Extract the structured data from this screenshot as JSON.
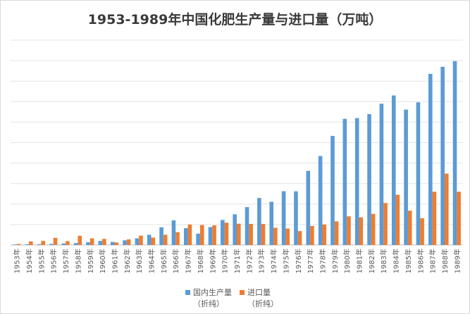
{
  "chart_data": {
    "type": "bar",
    "title": "1953-1989年中国化肥生产量与进口量（万吨）",
    "xlabel": "",
    "ylabel": "",
    "ylim": [
      0,
      2000
    ],
    "grid": true,
    "legend_position": "bottom",
    "categories": [
      "1953年",
      "1954年",
      "1955年",
      "1956年",
      "1957年",
      "1958年",
      "1959年",
      "1960年",
      "1961年",
      "1962年",
      "1963年",
      "1964年",
      "1965年",
      "1966年",
      "1967年",
      "1968年",
      "1969年",
      "1970年",
      "1971年",
      "1972年",
      "1973年",
      "1974年",
      "1975年",
      "1976年",
      "1977年",
      "1978年",
      "1979年",
      "1980年",
      "1981年",
      "1982年",
      "1983年",
      "1984年",
      "1985年",
      "1986年",
      "1987年",
      "1988年",
      "1989年"
    ],
    "series": [
      {
        "name": "国内生产量",
        "sub": "（折纯）",
        "color": "#5b9bd5",
        "values": [
          5,
          7,
          8,
          11,
          15,
          19,
          27,
          40,
          30,
          46,
          65,
          100,
          173,
          241,
          164,
          111,
          175,
          244,
          300,
          370,
          459,
          422,
          525,
          524,
          724,
          869,
          1065,
          1232,
          1239,
          1278,
          1379,
          1460,
          1322,
          1393,
          1671,
          1740,
          1795
        ]
      },
      {
        "name": "进口量",
        "sub": "（折纯）",
        "color": "#ed7d31",
        "values": [
          10,
          35,
          40,
          70,
          38,
          90,
          65,
          60,
          25,
          55,
          92,
          72,
          100,
          125,
          200,
          195,
          192,
          218,
          208,
          206,
          205,
          168,
          160,
          136,
          186,
          200,
          231,
          280,
          270,
          304,
          410,
          490,
          335,
          262,
          520,
          697,
          520
        ]
      }
    ]
  }
}
